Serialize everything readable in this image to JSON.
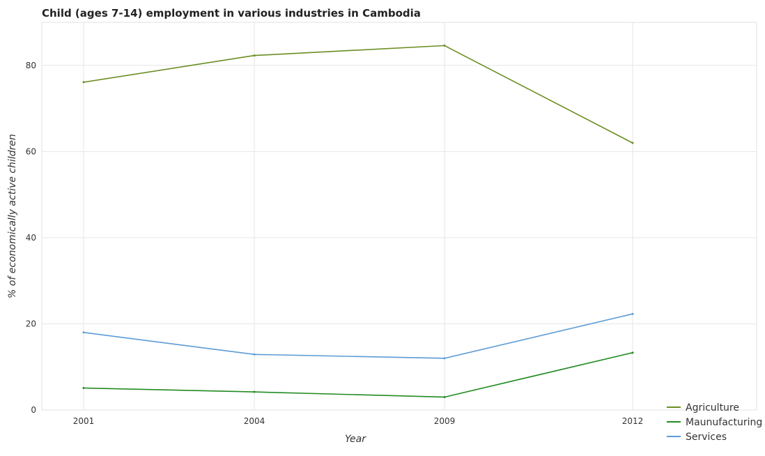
{
  "chart_data": {
    "type": "line",
    "title": "Child (ages 7-14) employment in various industries in Cambodia",
    "xlabel": "Year",
    "ylabel": "% of economically active children",
    "categories": [
      "2001",
      "2004",
      "2009",
      "2012"
    ],
    "ylim": [
      0,
      90
    ],
    "yticks": [
      0,
      20,
      40,
      60,
      80
    ],
    "grid": true,
    "legend_position": "bottom-right",
    "series": [
      {
        "name": "Agriculture",
        "color": "#6b8e23",
        "values": [
          76.1,
          82.3,
          84.6,
          62.0
        ]
      },
      {
        "name": "Maunufacturing",
        "color": "#228b22",
        "values": [
          5.1,
          4.2,
          3.0,
          13.3
        ]
      },
      {
        "name": "Services",
        "color": "#5b9bd5",
        "values": [
          18.0,
          12.9,
          12.0,
          22.3
        ]
      }
    ]
  }
}
